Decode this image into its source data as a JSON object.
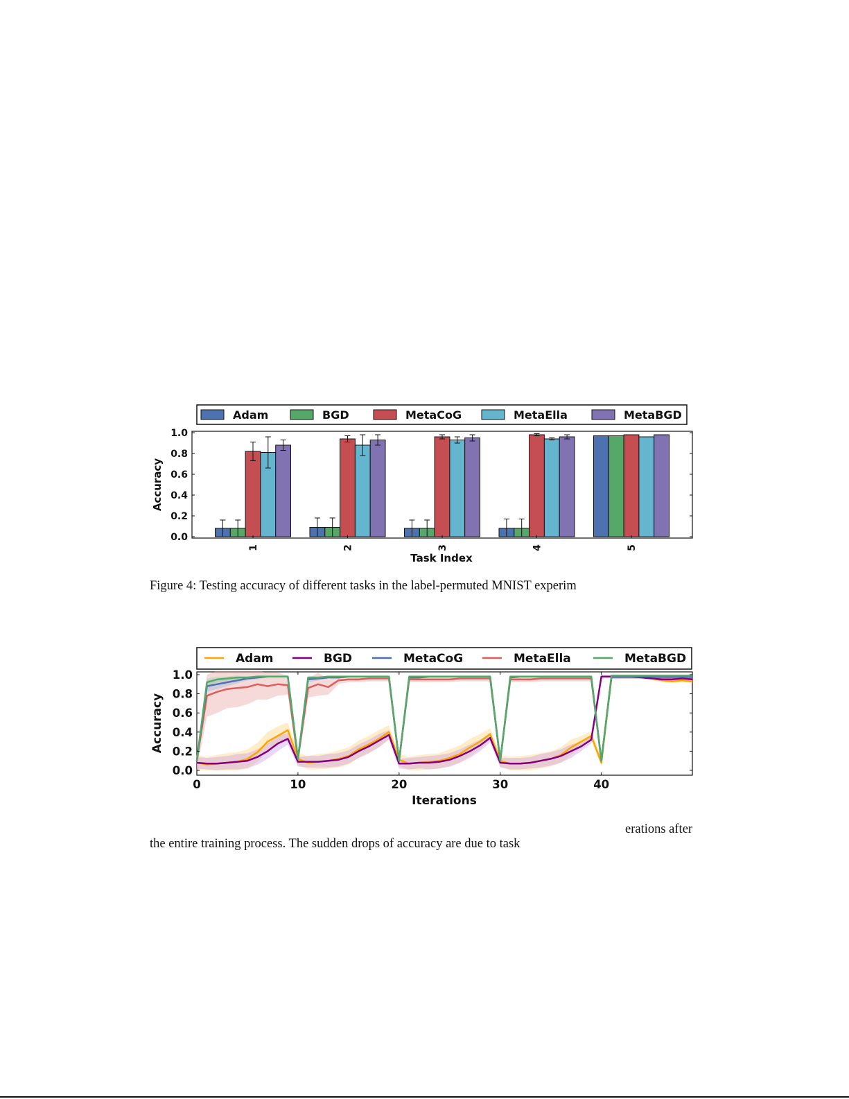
{
  "figure4": {
    "caption": "Figure 4: Testing accuracy of different tasks in the label-permuted MNIST experim",
    "chart_data": {
      "type": "bar",
      "xlabel": "Task Index",
      "ylabel": "Accuracy",
      "ylim": [
        0,
        1.0
      ],
      "yticks": [
        "0.0",
        "0.2",
        "0.4",
        "0.6",
        "0.8",
        "1.0"
      ],
      "categories": [
        "1",
        "2",
        "3",
        "4",
        "5"
      ],
      "legend_position": "top",
      "series": [
        {
          "name": "Adam",
          "color": "#4c72b0",
          "values": [
            0.08,
            0.09,
            0.08,
            0.08,
            0.97
          ],
          "errors": [
            0.08,
            0.09,
            0.08,
            0.09,
            0.0
          ]
        },
        {
          "name": "BGD",
          "color": "#55a868",
          "values": [
            0.08,
            0.09,
            0.08,
            0.08,
            0.97
          ],
          "errors": [
            0.08,
            0.09,
            0.08,
            0.09,
            0.0
          ]
        },
        {
          "name": "MetaCoG",
          "color": "#c44e52",
          "values": [
            0.82,
            0.94,
            0.96,
            0.98,
            0.98
          ],
          "errors": [
            0.09,
            0.03,
            0.02,
            0.01,
            0.0
          ]
        },
        {
          "name": "MetaElla",
          "color": "#64b5cd",
          "values": [
            0.81,
            0.88,
            0.93,
            0.94,
            0.96
          ],
          "errors": [
            0.15,
            0.1,
            0.03,
            0.01,
            0.0
          ]
        },
        {
          "name": "MetaBGD",
          "color": "#8172b2",
          "values": [
            0.88,
            0.93,
            0.95,
            0.96,
            0.98
          ],
          "errors": [
            0.05,
            0.05,
            0.03,
            0.02,
            0.0
          ]
        }
      ]
    }
  },
  "figure5": {
    "caption_line1": "erations after",
    "caption_line2": "the entire training process. The sudden drops of accuracy are due to task",
    "chart_data": {
      "type": "line",
      "xlabel": "Iterations",
      "ylabel": "Accuracy",
      "xlim": [
        0,
        49
      ],
      "ylim": [
        0,
        1.05
      ],
      "xticks": [
        "0",
        "10",
        "20",
        "30",
        "40"
      ],
      "yticks": [
        "0.0",
        "0.2",
        "0.4",
        "0.6",
        "0.8",
        "1.0"
      ],
      "legend_position": "top",
      "series": [
        {
          "name": "Adam",
          "color": "#ffa500",
          "bandColor": "#ffd27a",
          "values": [
            0.08,
            0.06,
            0.07,
            0.08,
            0.09,
            0.12,
            0.19,
            0.3,
            0.36,
            0.42,
            0.12,
            0.08,
            0.09,
            0.1,
            0.12,
            0.15,
            0.22,
            0.27,
            0.33,
            0.4,
            0.11,
            0.07,
            0.08,
            0.09,
            0.1,
            0.13,
            0.17,
            0.24,
            0.3,
            0.38,
            0.1,
            0.07,
            0.07,
            0.08,
            0.1,
            0.12,
            0.16,
            0.24,
            0.3,
            0.36,
            0.08,
            0.98,
            0.98,
            0.98,
            0.97,
            0.96,
            0.94,
            0.93,
            0.94,
            0.93
          ],
          "spread": [
            0.08,
            0.08,
            0.09,
            0.1,
            0.1,
            0.1,
            0.1,
            0.1,
            0.1,
            0.08,
            0.06,
            0.07,
            0.08,
            0.08,
            0.09,
            0.09,
            0.09,
            0.09,
            0.09,
            0.07,
            0.06,
            0.07,
            0.08,
            0.08,
            0.08,
            0.09,
            0.09,
            0.09,
            0.08,
            0.06,
            0.06,
            0.07,
            0.08,
            0.08,
            0.08,
            0.08,
            0.08,
            0.08,
            0.06,
            0.05,
            0.04,
            0.01,
            0.01,
            0.01,
            0.01,
            0.02,
            0.02,
            0.02,
            0.02,
            0.02
          ]
        },
        {
          "name": "BGD",
          "color": "#800080",
          "bandColor": "#c89ae0",
          "values": [
            0.08,
            0.07,
            0.07,
            0.08,
            0.09,
            0.1,
            0.14,
            0.2,
            0.28,
            0.33,
            0.09,
            0.09,
            0.09,
            0.1,
            0.11,
            0.14,
            0.2,
            0.25,
            0.31,
            0.37,
            0.07,
            0.07,
            0.08,
            0.08,
            0.09,
            0.11,
            0.15,
            0.2,
            0.26,
            0.34,
            0.08,
            0.07,
            0.07,
            0.08,
            0.1,
            0.12,
            0.15,
            0.2,
            0.25,
            0.32,
            0.98,
            0.98,
            0.98,
            0.98,
            0.97,
            0.96,
            0.95,
            0.95,
            0.96,
            0.95
          ],
          "spread": [
            0.06,
            0.06,
            0.07,
            0.07,
            0.08,
            0.08,
            0.08,
            0.08,
            0.08,
            0.06,
            0.05,
            0.06,
            0.06,
            0.07,
            0.07,
            0.07,
            0.07,
            0.07,
            0.07,
            0.05,
            0.05,
            0.06,
            0.06,
            0.07,
            0.07,
            0.07,
            0.07,
            0.07,
            0.06,
            0.05,
            0.05,
            0.06,
            0.06,
            0.06,
            0.07,
            0.07,
            0.07,
            0.07,
            0.05,
            0.04,
            0.02,
            0.01,
            0.01,
            0.01,
            0.01,
            0.01,
            0.01,
            0.01,
            0.01,
            0.01
          ]
        },
        {
          "name": "MetaCoG",
          "color": "#4c72b0",
          "bandColor": "#9db4da",
          "values": [
            0.1,
            0.88,
            0.9,
            0.92,
            0.94,
            0.96,
            0.97,
            0.98,
            0.98,
            0.98,
            0.12,
            0.95,
            0.96,
            0.97,
            0.97,
            0.98,
            0.98,
            0.98,
            0.98,
            0.98,
            0.1,
            0.97,
            0.97,
            0.98,
            0.98,
            0.98,
            0.98,
            0.98,
            0.98,
            0.98,
            0.1,
            0.97,
            0.98,
            0.98,
            0.98,
            0.98,
            0.98,
            0.98,
            0.98,
            0.98,
            0.1,
            0.98,
            0.98,
            0.98,
            0.98,
            0.98,
            0.98,
            0.98,
            0.98,
            0.98
          ],
          "spread": [
            0.05,
            0.06,
            0.05,
            0.04,
            0.03,
            0.02,
            0.02,
            0.01,
            0.01,
            0.01,
            0.05,
            0.03,
            0.02,
            0.01,
            0.01,
            0.01,
            0.01,
            0.01,
            0.01,
            0.01,
            0.04,
            0.01,
            0.01,
            0.01,
            0.01,
            0.01,
            0.01,
            0.01,
            0.01,
            0.01,
            0.04,
            0.01,
            0.01,
            0.01,
            0.01,
            0.01,
            0.01,
            0.01,
            0.01,
            0.01,
            0.04,
            0.01,
            0.01,
            0.01,
            0.01,
            0.01,
            0.01,
            0.01,
            0.01,
            0.01
          ]
        },
        {
          "name": "MetaElla",
          "color": "#d9605c",
          "bandColor": "#e8a3a0",
          "values": [
            0.1,
            0.78,
            0.82,
            0.85,
            0.86,
            0.87,
            0.9,
            0.88,
            0.9,
            0.89,
            0.12,
            0.86,
            0.9,
            0.87,
            0.94,
            0.95,
            0.95,
            0.96,
            0.96,
            0.96,
            0.1,
            0.95,
            0.95,
            0.95,
            0.95,
            0.95,
            0.96,
            0.96,
            0.96,
            0.96,
            0.1,
            0.95,
            0.95,
            0.95,
            0.96,
            0.96,
            0.96,
            0.96,
            0.96,
            0.96,
            0.1,
            0.97,
            0.97,
            0.97,
            0.97,
            0.97,
            0.97,
            0.97,
            0.97,
            0.97
          ],
          "spread": [
            0.08,
            0.22,
            0.22,
            0.2,
            0.2,
            0.18,
            0.16,
            0.14,
            0.12,
            0.1,
            0.08,
            0.1,
            0.12,
            0.08,
            0.04,
            0.03,
            0.03,
            0.03,
            0.03,
            0.03,
            0.06,
            0.03,
            0.03,
            0.03,
            0.03,
            0.03,
            0.03,
            0.03,
            0.03,
            0.03,
            0.06,
            0.03,
            0.03,
            0.03,
            0.03,
            0.03,
            0.03,
            0.03,
            0.03,
            0.03,
            0.05,
            0.01,
            0.01,
            0.01,
            0.01,
            0.01,
            0.01,
            0.01,
            0.01,
            0.01
          ]
        },
        {
          "name": "MetaBGD",
          "color": "#55a868",
          "bandColor": "#9fd1ab",
          "values": [
            0.1,
            0.92,
            0.95,
            0.96,
            0.97,
            0.97,
            0.98,
            0.98,
            0.98,
            0.98,
            0.12,
            0.97,
            0.97,
            0.98,
            0.98,
            0.98,
            0.98,
            0.98,
            0.98,
            0.98,
            0.1,
            0.98,
            0.98,
            0.98,
            0.98,
            0.98,
            0.98,
            0.98,
            0.98,
            0.98,
            0.1,
            0.98,
            0.98,
            0.98,
            0.98,
            0.98,
            0.98,
            0.98,
            0.98,
            0.98,
            0.1,
            0.99,
            0.99,
            0.99,
            0.99,
            0.99,
            0.99,
            0.99,
            0.99,
            0.99
          ],
          "spread": [
            0.05,
            0.04,
            0.03,
            0.02,
            0.02,
            0.01,
            0.01,
            0.01,
            0.01,
            0.01,
            0.05,
            0.02,
            0.01,
            0.01,
            0.01,
            0.01,
            0.01,
            0.01,
            0.01,
            0.01,
            0.04,
            0.01,
            0.01,
            0.01,
            0.01,
            0.01,
            0.01,
            0.01,
            0.01,
            0.01,
            0.04,
            0.01,
            0.01,
            0.01,
            0.01,
            0.01,
            0.01,
            0.01,
            0.01,
            0.01,
            0.04,
            0.01,
            0.01,
            0.01,
            0.01,
            0.01,
            0.01,
            0.01,
            0.01,
            0.01
          ]
        }
      ]
    }
  }
}
